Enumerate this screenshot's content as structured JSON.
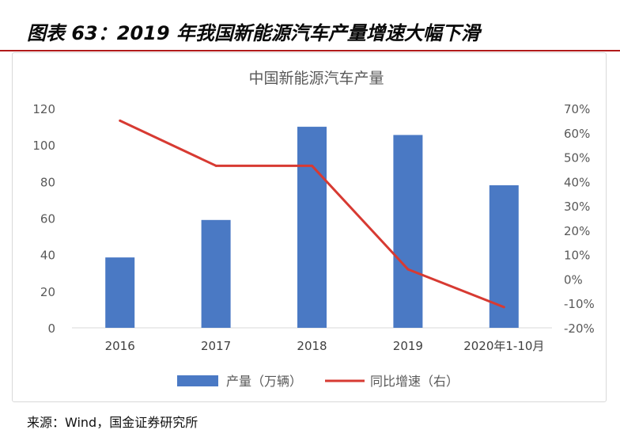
{
  "figure": {
    "title": "图表 63：2019 年我国新能源汽车产量增速大幅下滑",
    "source": "来源：Wind，国金证券研究所"
  },
  "colors": {
    "bar": "#4a79c4",
    "line": "#d73a32",
    "title_rule": "#b11a1a",
    "axis_text": "#595959",
    "title_text": "#595959"
  },
  "chart_data": {
    "type": "bar+line",
    "title": "中国新能源汽车产量",
    "categories": [
      "2016",
      "2017",
      "2018",
      "2019",
      "2020年1-10月"
    ],
    "series": [
      {
        "name": "产量（万辆）",
        "type": "bar",
        "axis": "left",
        "values": [
          38.5,
          59,
          110,
          105.5,
          78
        ]
      },
      {
        "name": "同比增速（右）",
        "type": "line",
        "axis": "right",
        "values": [
          0.65,
          0.465,
          0.465,
          0.04,
          -0.115
        ]
      }
    ],
    "y_left": {
      "min": 0,
      "max": 120,
      "ticks": [
        "0",
        "20",
        "40",
        "60",
        "80",
        "100",
        "120"
      ]
    },
    "y_right": {
      "min": -0.2,
      "max": 0.7,
      "ticks": [
        "-20%",
        "-10%",
        "0%",
        "10%",
        "20%",
        "30%",
        "40%",
        "50%",
        "60%",
        "70%"
      ]
    },
    "legend_position": "bottom",
    "grid": false
  }
}
